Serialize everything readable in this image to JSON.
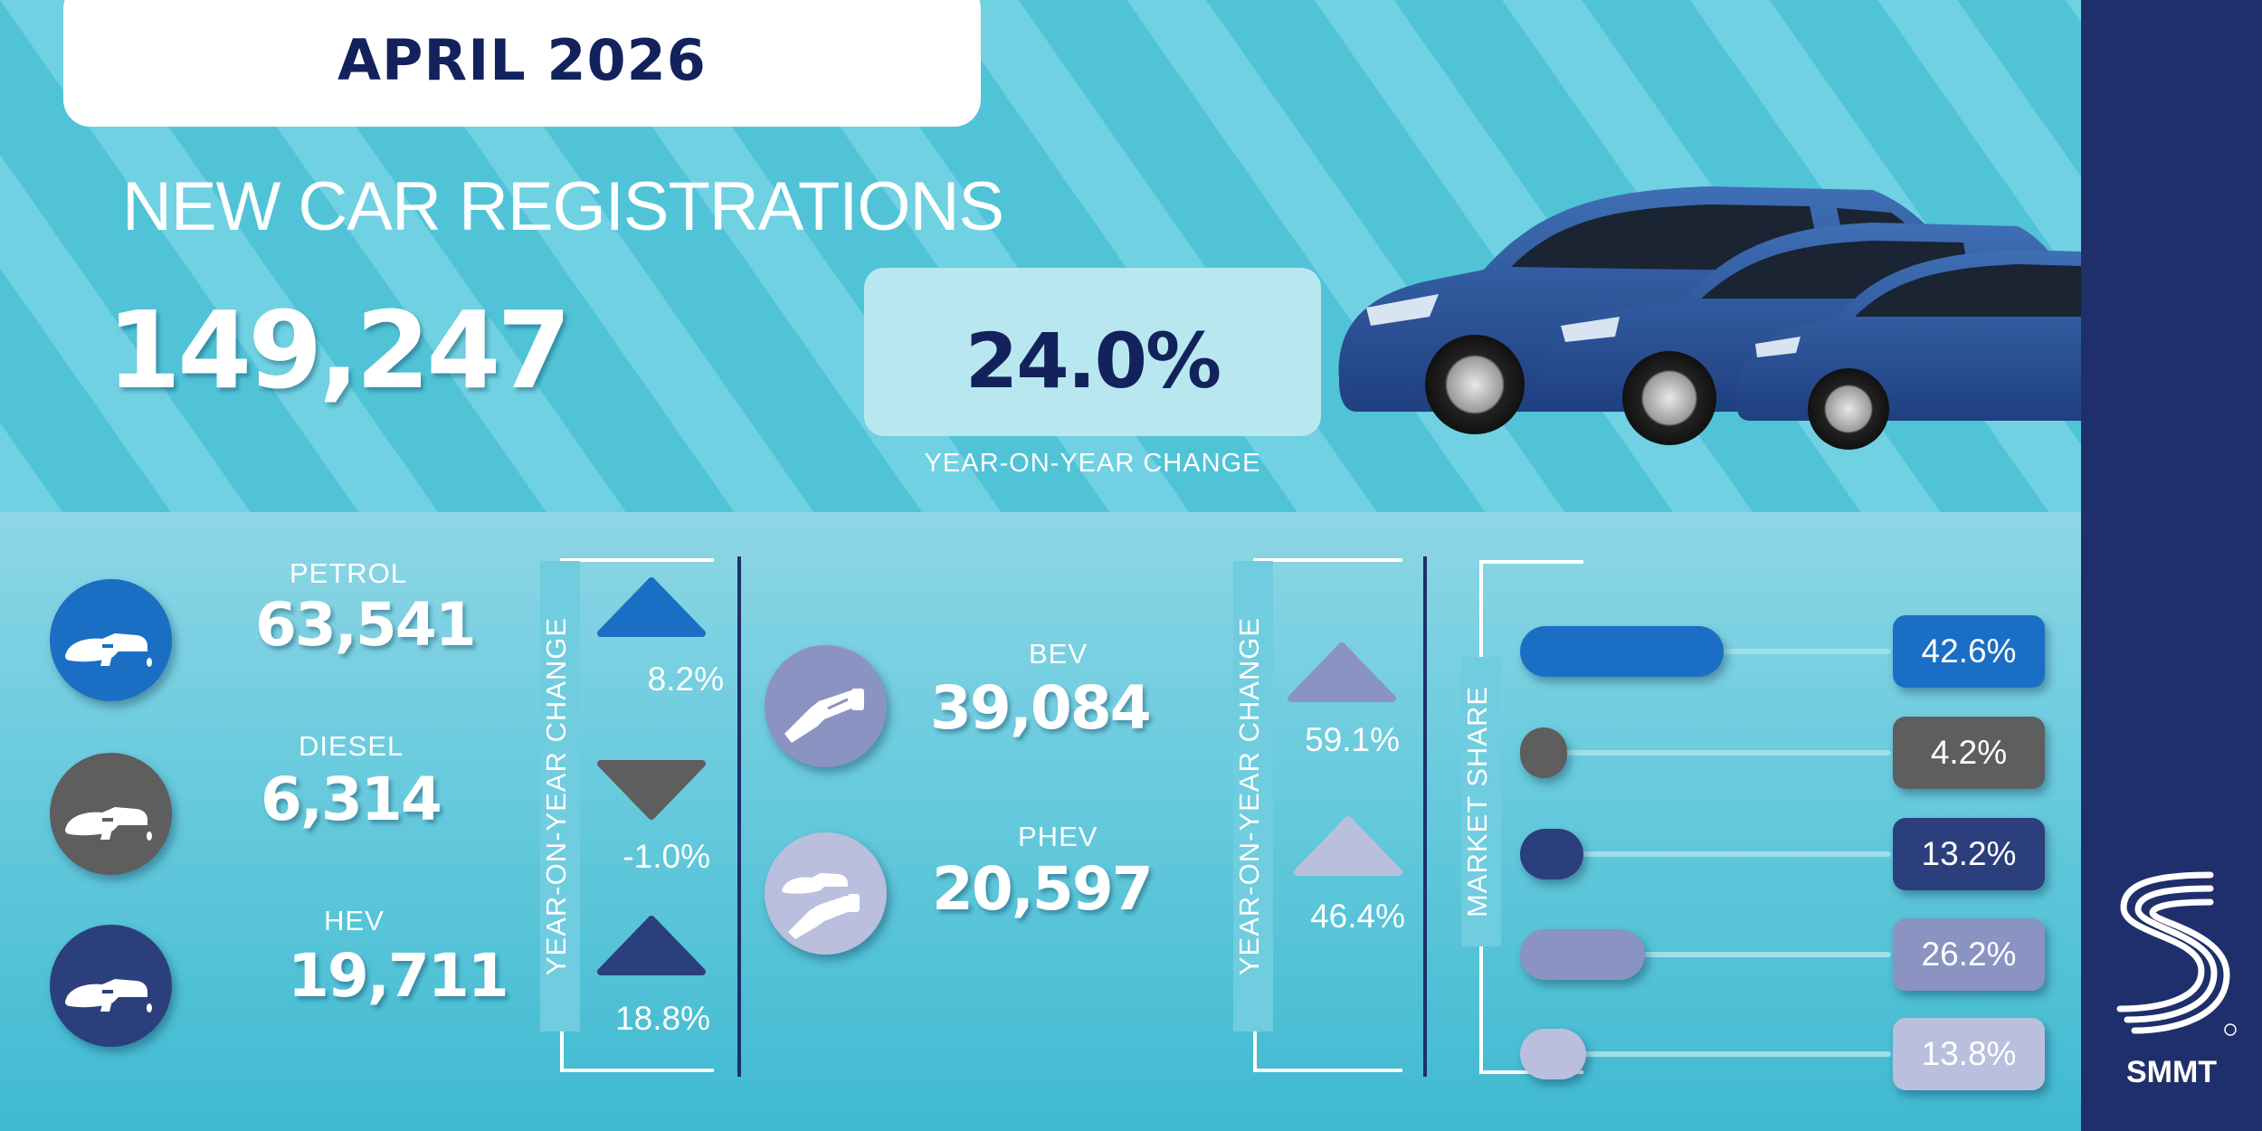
{
  "header": {
    "month": "APRIL 2026",
    "title": "NEW CAR REGISTRATIONS",
    "total": "149,247",
    "yoy_change": "24.0%",
    "yoy_label": "YEAR-ON-YEAR CHANGE"
  },
  "fuels_left": [
    {
      "label": "PETROL",
      "value": "63,541",
      "change": "8.2%",
      "direction": "up",
      "color": "#1a6fc4",
      "icon": "fuel-pump-icon"
    },
    {
      "label": "DIESEL",
      "value": "6,314",
      "change": "-1.0%",
      "direction": "down",
      "color": "#5e5e5e",
      "icon": "fuel-pump-icon"
    },
    {
      "label": "HEV",
      "value": "19,711",
      "change": "18.8%",
      "direction": "up",
      "color": "#2b3f7c",
      "icon": "fuel-pump-icon"
    }
  ],
  "fuels_right": [
    {
      "label": "BEV",
      "value": "39,084",
      "change": "59.1%",
      "direction": "up",
      "color": "#8a93c2",
      "icon": "ev-plug-icon"
    },
    {
      "label": "PHEV",
      "value": "20,597",
      "change": "46.4%",
      "direction": "up",
      "color": "#b9bfdd",
      "icon": "hybrid-plug-pump-icon"
    }
  ],
  "yoy_axis_label": "YEAR-ON-YEAR CHANGE",
  "market_share": {
    "label": "MARKET SHARE",
    "items": [
      {
        "value": "42.6%",
        "share": 42.6,
        "color": "#1a6fc4"
      },
      {
        "value": "4.2%",
        "share": 4.2,
        "color": "#5e5e5e"
      },
      {
        "value": "13.2%",
        "share": 13.2,
        "color": "#2b3f7c"
      },
      {
        "value": "26.2%",
        "share": 26.2,
        "color": "#8a93c2"
      },
      {
        "value": "13.8%",
        "share": 13.8,
        "color": "#b9bfdd"
      }
    ]
  },
  "brand": {
    "name": "SMMT"
  },
  "colors": {
    "navy": "#13225c",
    "turquoise": "#4fc3d6",
    "sidebar": "#1e2f6b"
  }
}
